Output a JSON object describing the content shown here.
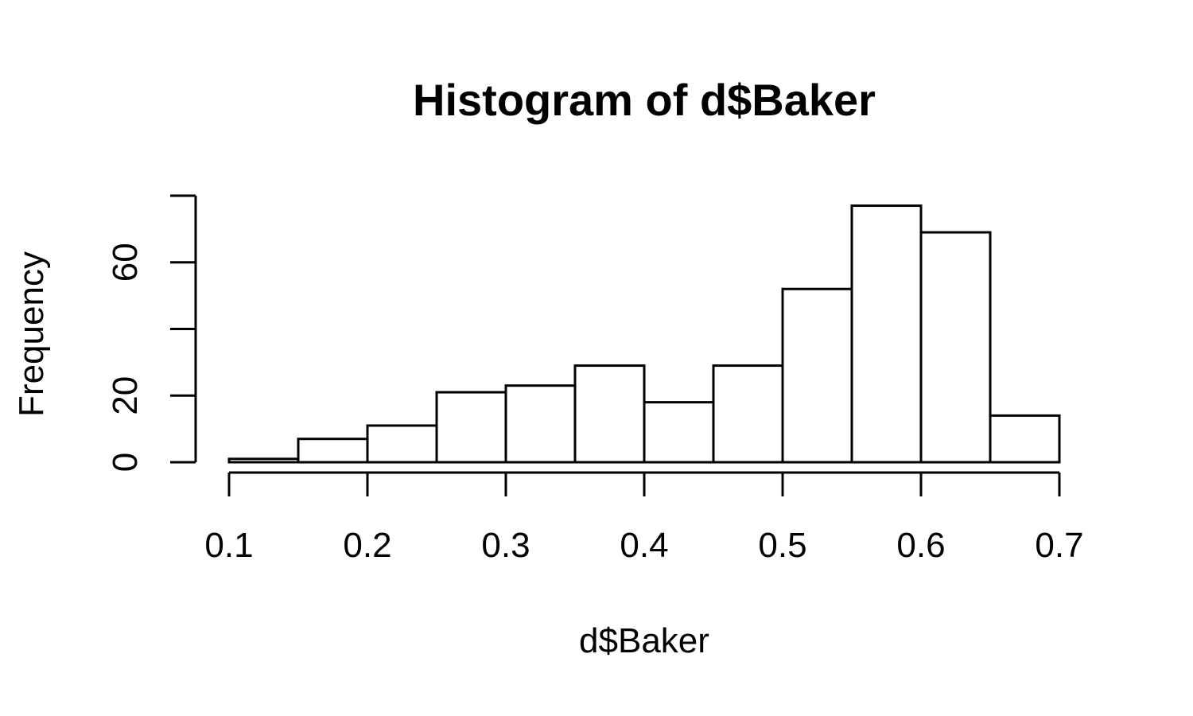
{
  "chart_data": {
    "type": "bar",
    "title": "Histogram of d$Baker",
    "xlabel": "d$Baker",
    "ylabel": "Frequency",
    "bins": [
      {
        "x0": 0.1,
        "x1": 0.15,
        "value": 1
      },
      {
        "x0": 0.15,
        "x1": 0.2,
        "value": 7
      },
      {
        "x0": 0.2,
        "x1": 0.25,
        "value": 11
      },
      {
        "x0": 0.25,
        "x1": 0.3,
        "value": 21
      },
      {
        "x0": 0.3,
        "x1": 0.35,
        "value": 23
      },
      {
        "x0": 0.35,
        "x1": 0.4,
        "value": 29
      },
      {
        "x0": 0.4,
        "x1": 0.45,
        "value": 18
      },
      {
        "x0": 0.45,
        "x1": 0.5,
        "value": 29
      },
      {
        "x0": 0.5,
        "x1": 0.55,
        "value": 52
      },
      {
        "x0": 0.55,
        "x1": 0.6,
        "value": 77
      },
      {
        "x0": 0.6,
        "x1": 0.65,
        "value": 69
      },
      {
        "x0": 0.65,
        "x1": 0.7,
        "value": 14
      }
    ],
    "xlim": [
      0.1,
      0.7
    ],
    "ylim": [
      0,
      80
    ],
    "x_ticks": [
      0.1,
      0.2,
      0.3,
      0.4,
      0.5,
      0.6,
      0.7
    ],
    "x_tick_labels": [
      "0.1",
      "0.2",
      "0.3",
      "0.4",
      "0.5",
      "0.6",
      "0.7"
    ],
    "y_ticks": [
      0,
      20,
      40,
      60,
      80
    ],
    "y_tick_labels": [
      "0",
      "20",
      "",
      "60",
      ""
    ],
    "grid": false,
    "legend": "none"
  }
}
